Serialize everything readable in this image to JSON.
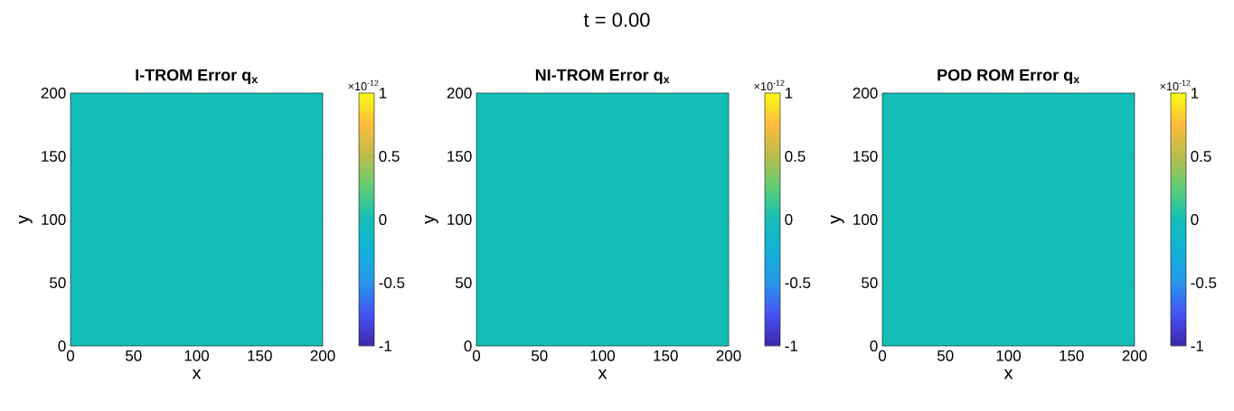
{
  "chart_data": [
    {
      "type": "heatmap",
      "title": "I-TROM Error q$_{x}$",
      "xlabel": "x",
      "ylabel": "y",
      "xlim": [
        0,
        200
      ],
      "ylim": [
        0,
        200
      ],
      "xticks": [
        0,
        50,
        100,
        150,
        200
      ],
      "yticks": [
        0,
        50,
        100,
        150,
        200
      ],
      "cells": [
        [
          0
        ]
      ],
      "clim": [
        -1,
        1
      ],
      "cticks": [
        -1,
        -0.5,
        0,
        0.5,
        1
      ],
      "annotations": [
        "×10$^{-12}$"
      ]
    },
    {
      "type": "heatmap",
      "title": "NI-TROM Error q$_{x}$",
      "subtitle": "t = 0.00",
      "xlabel": "x",
      "ylabel": "y",
      "xlim": [
        0,
        200
      ],
      "ylim": [
        0,
        200
      ],
      "xticks": [
        0,
        50,
        100,
        150,
        200
      ],
      "yticks": [
        0,
        50,
        100,
        150,
        200
      ],
      "cells": [
        [
          0
        ]
      ],
      "clim": [
        -1,
        1
      ],
      "cticks": [
        -1,
        -0.5,
        0,
        0.5,
        1
      ],
      "annotations": [
        "×10$^{-12}$"
      ]
    },
    {
      "type": "heatmap",
      "title": "POD ROM Error q$_{x}$",
      "xlabel": "x",
      "ylabel": "y",
      "xlim": [
        0,
        200
      ],
      "ylim": [
        0,
        200
      ],
      "xticks": [
        0,
        50,
        100,
        150,
        200
      ],
      "yticks": [
        0,
        50,
        100,
        150,
        200
      ],
      "cells": [
        [
          0
        ]
      ],
      "clim": [
        -1,
        1
      ],
      "cticks": [
        -1,
        -0.5,
        0,
        0.5,
        1
      ],
      "annotations": [
        "×10$^{-12}$"
      ]
    }
  ]
}
